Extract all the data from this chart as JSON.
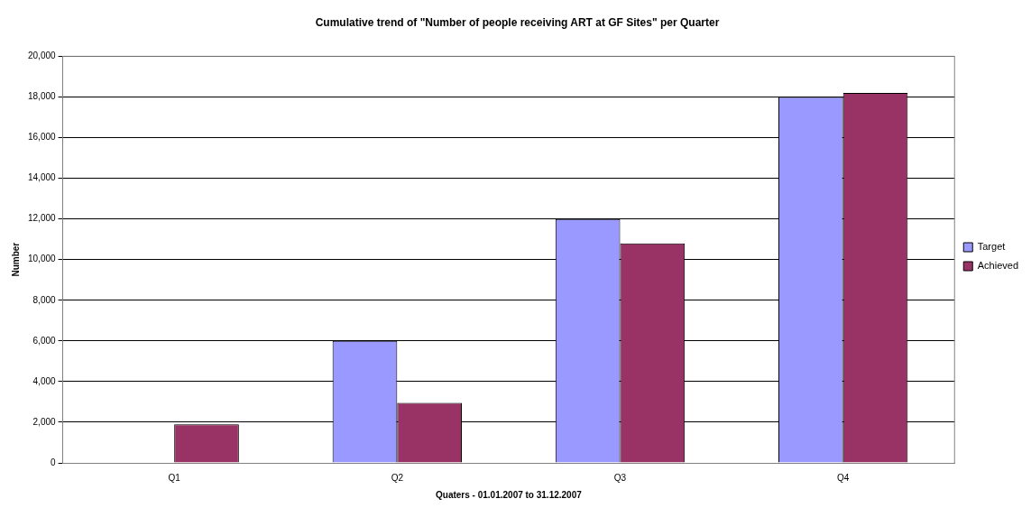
{
  "chart_data": {
    "type": "bar",
    "title": "Cumulative trend of \"Number of people receiving ART at GF Sites\" per Quarter",
    "xlabel": "Quaters - 01.01.2007 to 31.12.2007",
    "ylabel": "Number",
    "categories": [
      "Q1",
      "Q2",
      "Q3",
      "Q4"
    ],
    "series": [
      {
        "name": "Target",
        "color": "#9999ff",
        "values": [
          0,
          6000,
          12000,
          18000
        ]
      },
      {
        "name": "Achieved",
        "color": "#993366",
        "values": [
          1900,
          2950,
          10800,
          18200
        ]
      }
    ],
    "ylim": [
      0,
      20000
    ],
    "yticks": [
      0,
      {
        "value": 2000,
        "label": "2,000"
      },
      {
        "value": 4000,
        "label": "4,000"
      },
      {
        "value": 6000,
        "label": "6,000"
      },
      {
        "value": 8000,
        "label": "8,000"
      },
      {
        "value": 10000,
        "label": "10,000"
      },
      {
        "value": 12000,
        "label": "12,000"
      },
      {
        "value": 14000,
        "label": "14,000"
      },
      {
        "value": 16000,
        "label": "16,000"
      },
      {
        "value": 18000,
        "label": "18,000"
      },
      {
        "value": 20000,
        "label": "20,000"
      }
    ],
    "grid": "y",
    "legend": "right"
  }
}
